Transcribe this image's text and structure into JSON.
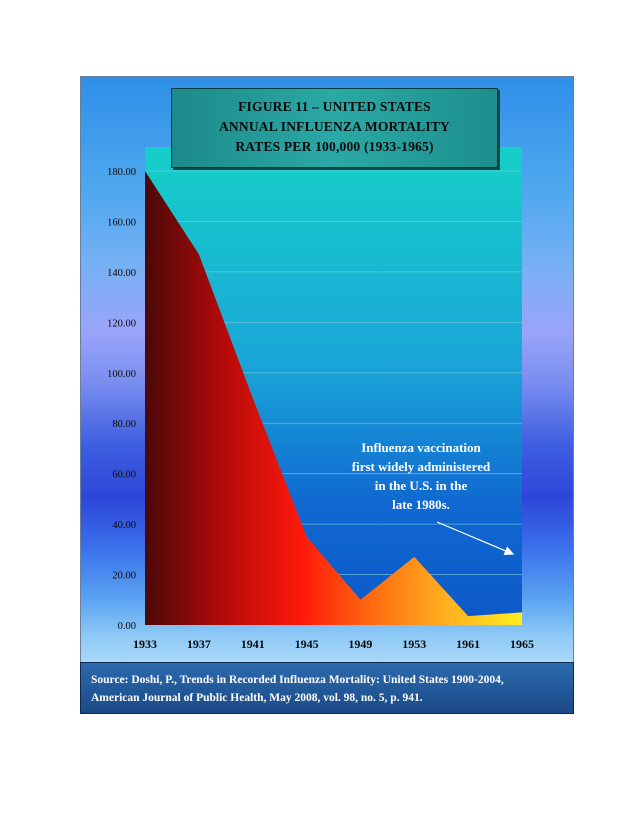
{
  "title": {
    "line1": "FIGURE 11 – UNITED STATES",
    "line2": "ANNUAL INFLUENZA MORTALITY",
    "line3": "RATES PER 100,000 (1933-1965)"
  },
  "source": {
    "line1": "Source:  Doshi, P., Trends in Recorded Influenza Mortality: United States 1900-2004,",
    "line2": "American Journal of Public Health, May 2008, vol. 98, no. 5, p. 941."
  },
  "chart_data": {
    "type": "area",
    "title": "FIGURE 11 – UNITED STATES ANNUAL INFLUENZA MORTALITY RATES PER 100,000 (1933-1965)",
    "xlabel": "",
    "ylabel": "",
    "categories": [
      "1933",
      "1937",
      "1941",
      "1945",
      "1949",
      "1953",
      "1961",
      "1965"
    ],
    "values": [
      180.0,
      147.0,
      90.0,
      35.0,
      10.0,
      27.0,
      3.5,
      5.0
    ],
    "ylim": [
      0,
      180
    ],
    "yticks": [
      "0.00",
      "20.00",
      "40.00",
      "60.00",
      "80.00",
      "100.00",
      "120.00",
      "140.00",
      "160.00",
      "180.00"
    ],
    "grid": true,
    "annotation": {
      "lines": [
        "Influenza vaccination",
        "first widely administered",
        "in the U.S. in the",
        "late 1980s."
      ]
    }
  }
}
